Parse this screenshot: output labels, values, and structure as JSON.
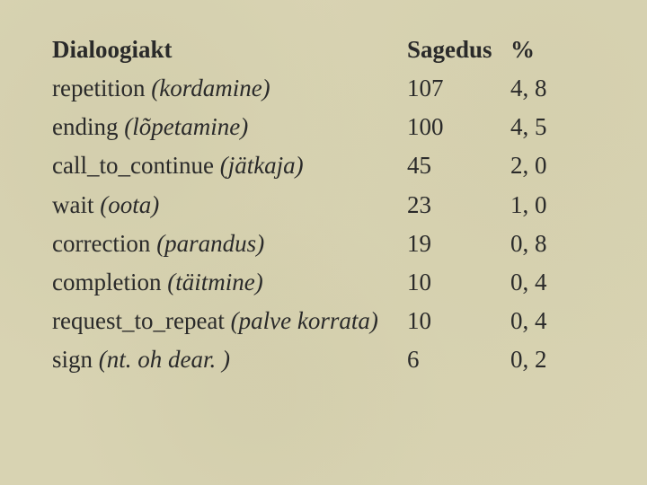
{
  "table": {
    "headers": {
      "act": "Dialoogiakt",
      "freq": "Sagedus",
      "pct": "%"
    },
    "rows": [
      {
        "act_en": "repetition",
        "act_et": "(kordamine)",
        "freq": "107",
        "pct": "4, 8"
      },
      {
        "act_en": "ending",
        "act_et": "(lõpetamine)",
        "freq": "100",
        "pct": "4, 5"
      },
      {
        "act_en": "call_to_continue",
        "act_et": "(jätkaja)",
        "freq": "45",
        "pct": "2, 0"
      },
      {
        "act_en": "wait",
        "act_et": "(oota)",
        "freq": "23",
        "pct": "1, 0"
      },
      {
        "act_en": "correction",
        "act_et": "(parandus)",
        "freq": "19",
        "pct": "0, 8"
      },
      {
        "act_en": "completion",
        "act_et": "(täitmine)",
        "freq": "10",
        "pct": "0, 4"
      },
      {
        "act_en": "request_to_repeat",
        "act_et": "(palve korrata)",
        "freq": "10",
        "pct": "0, 4"
      },
      {
        "act_en": "sign",
        "act_et": "(nt. oh dear. )",
        "freq": "6",
        "pct": "0, 2"
      }
    ],
    "columns": [
      "act",
      "freq",
      "pct"
    ],
    "background_color": "#d8d3b2",
    "text_color": "#2a2a2a",
    "font_family": "Times New Roman",
    "header_fontweight": "bold",
    "body_fontsize_pt": 20,
    "row_count": 8
  }
}
